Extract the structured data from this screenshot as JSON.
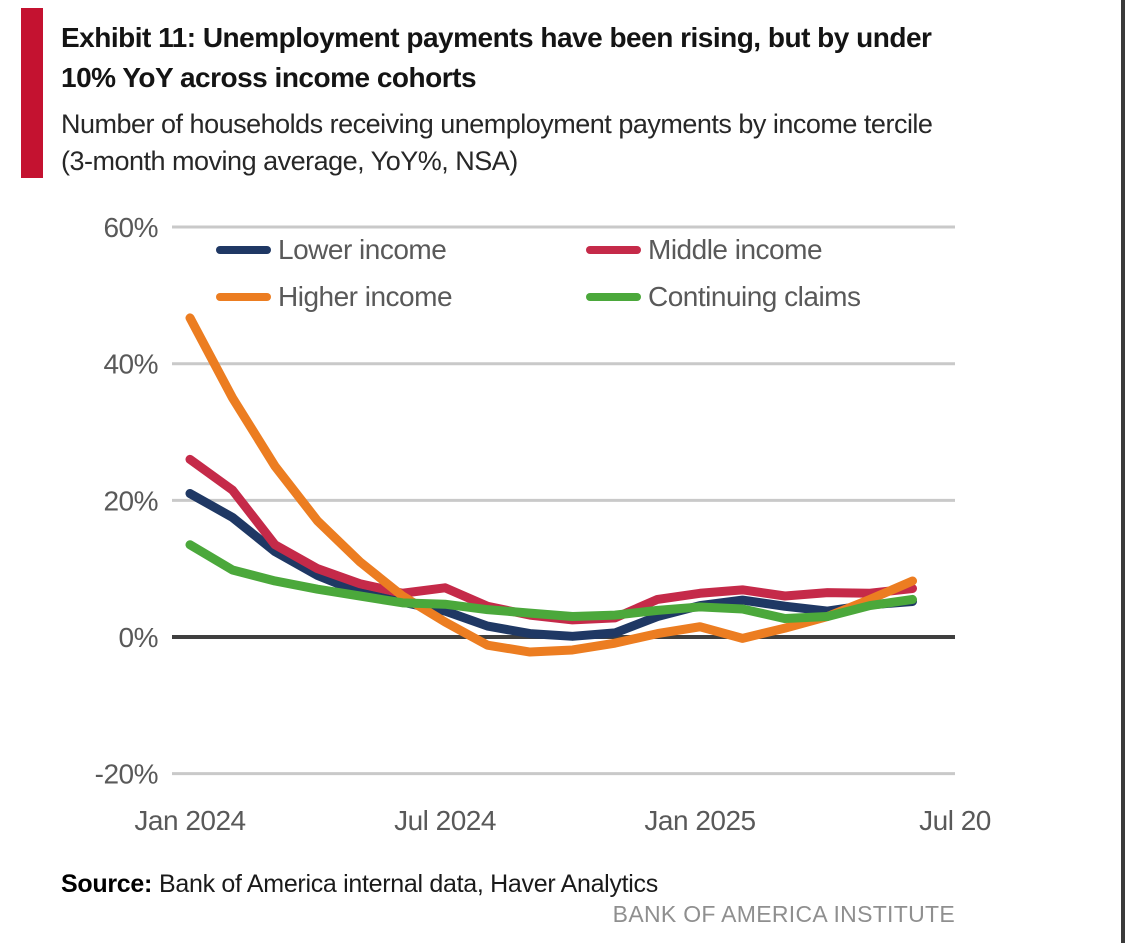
{
  "accent_color": "#c41230",
  "header": {
    "title": "Exhibit 11: Unemployment payments have been rising, but by under 10% YoY across income cohorts",
    "subtitle": "Number of households receiving unemployment payments by income tercile (3-month moving average, YoY%, NSA)"
  },
  "chart_data": {
    "type": "line",
    "title": "Exhibit 11: Unemployment payments have been rising, but by under 10% YoY across income cohorts",
    "subtitle": "Number of households receiving unemployment payments by income tercile (3-month moving average, YoY%, NSA)",
    "x": [
      "Jan 2024",
      "Feb 2024",
      "Mar 2024",
      "Apr 2024",
      "May 2024",
      "Jun 2024",
      "Jul 2024",
      "Aug 2024",
      "Sep 2024",
      "Oct 2024",
      "Nov 2024",
      "Dec 2024",
      "Jan 2025",
      "Feb 2025",
      "Mar 2025",
      "Apr 2025",
      "May 2025",
      "Jun 2025"
    ],
    "series": [
      {
        "name": "Lower income",
        "color": "#1f3864",
        "values": [
          21.0,
          17.5,
          12.5,
          9.0,
          6.5,
          5.1,
          3.8,
          1.6,
          0.5,
          0.1,
          0.6,
          3.0,
          4.6,
          5.4,
          4.5,
          3.8,
          4.7,
          5.2
        ]
      },
      {
        "name": "Middle income",
        "color": "#c52a49",
        "values": [
          26.0,
          21.5,
          13.5,
          10.0,
          7.8,
          6.4,
          7.2,
          4.5,
          3.2,
          2.5,
          2.8,
          5.5,
          6.4,
          6.9,
          6.0,
          6.5,
          6.4,
          7.1
        ]
      },
      {
        "name": "Higher income",
        "color": "#ec7d21",
        "values": [
          46.7,
          35.0,
          25.0,
          17.0,
          11.0,
          6.0,
          2.2,
          -1.2,
          -2.2,
          -1.9,
          -0.9,
          0.5,
          1.5,
          -0.2,
          1.3,
          3.0,
          5.5,
          8.2
        ]
      },
      {
        "name": "Continuing claims",
        "color": "#4ba83b",
        "values": [
          13.5,
          9.8,
          8.2,
          7.0,
          6.0,
          5.0,
          4.8,
          4.0,
          3.5,
          3.0,
          3.2,
          3.9,
          4.4,
          4.1,
          2.7,
          3.0,
          4.6,
          5.5
        ]
      }
    ],
    "ylim": [
      -20,
      60
    ],
    "yticks": [
      {
        "label": "60%",
        "value": 60
      },
      {
        "label": "40%",
        "value": 40
      },
      {
        "label": "20%",
        "value": 20
      },
      {
        "label": "0%",
        "value": 0
      },
      {
        "label": "-20%",
        "value": -20
      }
    ],
    "xticks": [
      {
        "label": "Jan 2024",
        "month_index": 0
      },
      {
        "label": "Jul 2024",
        "month_index": 6
      },
      {
        "label": "Jan 2025",
        "month_index": 12
      },
      {
        "label": "Jul 20",
        "month_index": 18
      }
    ],
    "grid": "horizontal",
    "zero_axis": true,
    "legend_position": "top-inside"
  },
  "footer": {
    "source_label": "Source:",
    "source_text": "Bank of America internal data, Haver Analytics",
    "branding": "BANK OF AMERICA INSTITUTE"
  }
}
